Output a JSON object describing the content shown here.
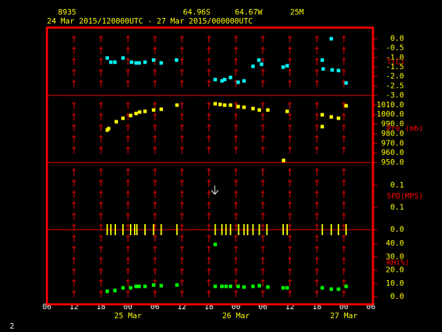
{
  "header": {
    "station": "8935",
    "latitude": "64.96S",
    "longitude": "64.67W",
    "elevation": "25M",
    "period": "24 Mar 2015/120000UTC - 27 Mar 2015/000000UTC"
  },
  "page_number": "2",
  "chart_data": [
    {
      "type": "scatter",
      "y_label": "T(C)",
      "color": "#00ffff",
      "marker": "square",
      "xlim": [
        0,
        72
      ],
      "ylim": [
        -3.0,
        0.0
      ],
      "yticks": [
        {
          "value": 0,
          "label": "0.0"
        },
        {
          "value": -0.5,
          "label": "-0.5"
        },
        {
          "value": -1,
          "label": "-1.0"
        },
        {
          "value": -1.5,
          "label": "-1.5"
        },
        {
          "value": -2,
          "label": "-2.0"
        },
        {
          "value": -2.5,
          "label": "-2.5"
        },
        {
          "value": -3,
          "label": "-3.0"
        }
      ],
      "x": [
        13.4,
        14.2,
        15.1,
        16.9,
        18.8,
        19.8,
        20.5,
        21.8,
        23.7,
        25.4,
        28.8,
        37.4,
        38.9,
        39.5,
        40.8,
        42.5,
        43.8,
        45.8,
        47.1,
        47.7,
        52.5,
        53.4,
        61.2,
        61.4,
        63.2,
        63.4,
        64.8,
        66.5
      ],
      "values": [
        -1.02,
        -1.24,
        -1.24,
        -1.02,
        -1.24,
        -1.28,
        -1.28,
        -1.24,
        -1.13,
        -1.28,
        -1.13,
        -2.16,
        -2.23,
        -2.16,
        -2.05,
        -2.3,
        -2.23,
        -1.46,
        -1.13,
        -1.35,
        -1.5,
        -1.43,
        -1.13,
        -1.6,
        0.0,
        -1.65,
        -1.68,
        -2.34
      ]
    },
    {
      "type": "scatter",
      "y_label": "Pre (mb)",
      "color": "#ffff00",
      "marker": "square",
      "xlim": [
        0,
        72
      ],
      "ylim": [
        950,
        1020
      ],
      "yticks": [
        {
          "value": 1010,
          "label": "1010.0"
        },
        {
          "value": 1000,
          "label": "1000.0"
        },
        {
          "value": 990,
          "label": "990.0"
        },
        {
          "value": 980,
          "label": "980.0"
        },
        {
          "value": 970,
          "label": "970.0"
        },
        {
          "value": 960,
          "label": "960.0"
        },
        {
          "value": 950,
          "label": "950.0"
        }
      ],
      "x": [
        13.4,
        13.7,
        15.4,
        16.9,
        18.6,
        19.8,
        20.6,
        21.8,
        23.7,
        25.4,
        28.9,
        37.4,
        38.5,
        39.5,
        40.8,
        42.5,
        43.8,
        45.8,
        47.2,
        49.1,
        52.6,
        53.4,
        61.2,
        61.2,
        63.2,
        64.8,
        66.5
      ],
      "values": [
        983.9,
        985.4,
        992.6,
        996.2,
        999.1,
        1001.2,
        1002.7,
        1003.4,
        1004.8,
        1005.6,
        1009.9,
        1011.3,
        1010.6,
        1009.9,
        1009.9,
        1008.4,
        1007.7,
        1006.3,
        1004.8,
        1004.8,
        952.2,
        1003.4,
        999.8,
        987.5,
        997.6,
        996.2,
        1009.2
      ]
    },
    {
      "type": "scatter",
      "y_label": "SPD(MPS)",
      "color": "#ffff00",
      "marker": "vline",
      "xlim": [
        0,
        72
      ],
      "ylim": [
        0,
        0.15
      ],
      "yticks": [
        {
          "value": 0.1,
          "label": "0.1"
        },
        {
          "value": 0.05,
          "label": "0.1"
        },
        {
          "value": 0,
          "label": "0.0"
        }
      ],
      "x": [
        13.4,
        14.2,
        15.2,
        16.9,
        18.6,
        19.5,
        20.0,
        21.8,
        23.7,
        25.4,
        28.9,
        37.4,
        38.9,
        39.8,
        40.8,
        42.6,
        43.8,
        44.6,
        45.8,
        47.2,
        48.9,
        52.5,
        53.4,
        61.2,
        63.2,
        64.8,
        66.5
      ],
      "values": [
        0,
        0,
        0,
        0,
        0,
        0,
        0,
        0,
        0,
        0,
        0,
        0,
        0,
        0,
        0,
        0,
        0,
        0,
        0,
        0,
        0,
        0,
        0,
        0,
        0,
        0,
        0
      ]
    },
    {
      "type": "scatter",
      "y_label": "RH(%)",
      "color": "#00ff00",
      "marker": "square",
      "xlim": [
        0,
        72
      ],
      "ylim": [
        0,
        50
      ],
      "yticks": [
        {
          "value": 40,
          "label": "40.0"
        },
        {
          "value": 30,
          "label": "30.0"
        },
        {
          "value": 20,
          "label": "20.0"
        },
        {
          "value": 10,
          "label": "10.0"
        },
        {
          "value": 0,
          "label": "0.0"
        }
      ],
      "xticks": [
        {
          "value": 0,
          "label": "06"
        },
        {
          "value": 6,
          "label": "12"
        },
        {
          "value": 12,
          "label": "18"
        },
        {
          "value": 18,
          "label": "00"
        },
        {
          "value": 24,
          "label": "06"
        },
        {
          "value": 30,
          "label": "12"
        },
        {
          "value": 36,
          "label": "18"
        },
        {
          "value": 42,
          "label": "00"
        },
        {
          "value": 48,
          "label": "06"
        },
        {
          "value": 54,
          "label": "12"
        },
        {
          "value": 60,
          "label": "18"
        },
        {
          "value": 66,
          "label": "00"
        },
        {
          "value": 72,
          "label": "06"
        }
      ],
      "x_date_labels": [
        {
          "value": 18,
          "label": "25 Mar"
        },
        {
          "value": 42,
          "label": "26 Mar"
        },
        {
          "value": 66,
          "label": "27 Mar"
        }
      ],
      "x": [
        13.4,
        15.1,
        16.9,
        18.6,
        19.8,
        20.5,
        21.8,
        23.7,
        25.4,
        28.9,
        37.4,
        37.4,
        38.9,
        39.8,
        40.8,
        42.5,
        43.8,
        45.8,
        47.2,
        49.1,
        52.5,
        53.4,
        61.2,
        63.2,
        64.8,
        66.5
      ],
      "values": [
        4.1,
        4.7,
        6.7,
        6.7,
        7.8,
        7.8,
        7.8,
        8.8,
        8.3,
        8.8,
        39.4,
        7.8,
        7.8,
        7.8,
        7.8,
        7.8,
        7.3,
        7.8,
        8.3,
        7.3,
        6.7,
        6.7,
        6.7,
        5.7,
        5.7,
        7.8
      ]
    }
  ]
}
